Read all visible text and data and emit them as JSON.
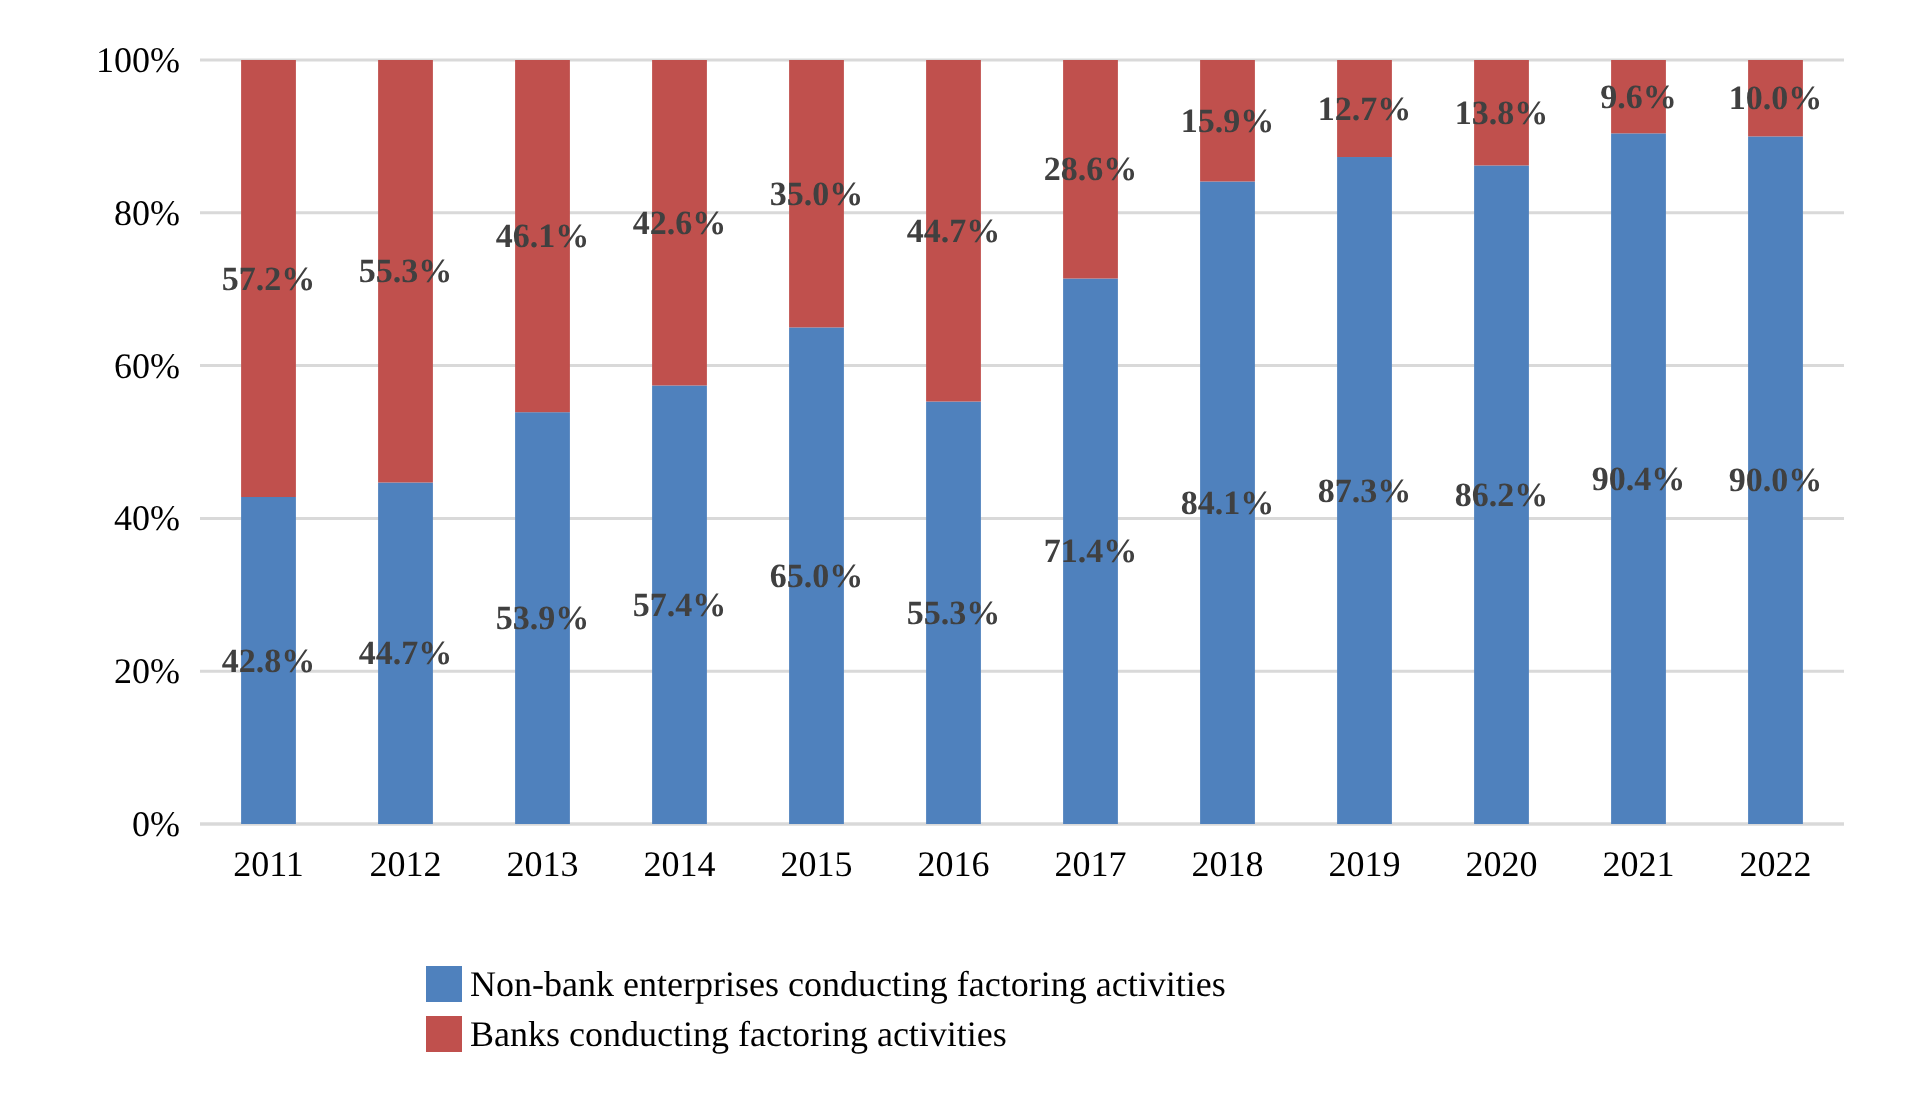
{
  "chart_data": {
    "type": "bar",
    "stacked": true,
    "categories": [
      "2011",
      "2012",
      "2013",
      "2014",
      "2015",
      "2016",
      "2017",
      "2018",
      "2019",
      "2020",
      "2021",
      "2022"
    ],
    "series": [
      {
        "name": "Non-bank enterprises conducting factoring activities",
        "color": "#4f81bd",
        "values": [
          42.8,
          44.7,
          53.9,
          57.4,
          65.0,
          55.3,
          71.4,
          84.1,
          87.3,
          86.2,
          90.4,
          90.0
        ],
        "value_labels": [
          "42.8%",
          "44.7%",
          "53.9%",
          "57.4%",
          "65.0%",
          "55.3%",
          "71.4%",
          "84.1%",
          "87.3%",
          "86.2%",
          "90.4%",
          "90.0%"
        ]
      },
      {
        "name": "Banks conducting factoring activities",
        "color": "#c0504d",
        "values": [
          57.2,
          55.3,
          46.1,
          42.6,
          35.0,
          44.7,
          28.6,
          15.9,
          12.7,
          13.8,
          9.6,
          10.0
        ],
        "value_labels": [
          "57.2%",
          "55.3%",
          "46.1%",
          "42.6%",
          "35.0%",
          "44.7%",
          "28.6%",
          "15.9%",
          "12.7%",
          "13.8%",
          "9.6%",
          "10.0%"
        ]
      }
    ],
    "ylim": [
      0,
      100
    ],
    "yticks": [
      {
        "value": 0,
        "label": "0%"
      },
      {
        "value": 20,
        "label": "20%"
      },
      {
        "value": 40,
        "label": "40%"
      },
      {
        "value": 60,
        "label": "60%"
      },
      {
        "value": 80,
        "label": "80%"
      },
      {
        "value": 100,
        "label": "100%"
      }
    ],
    "grid": "y",
    "legend": "bottom"
  }
}
